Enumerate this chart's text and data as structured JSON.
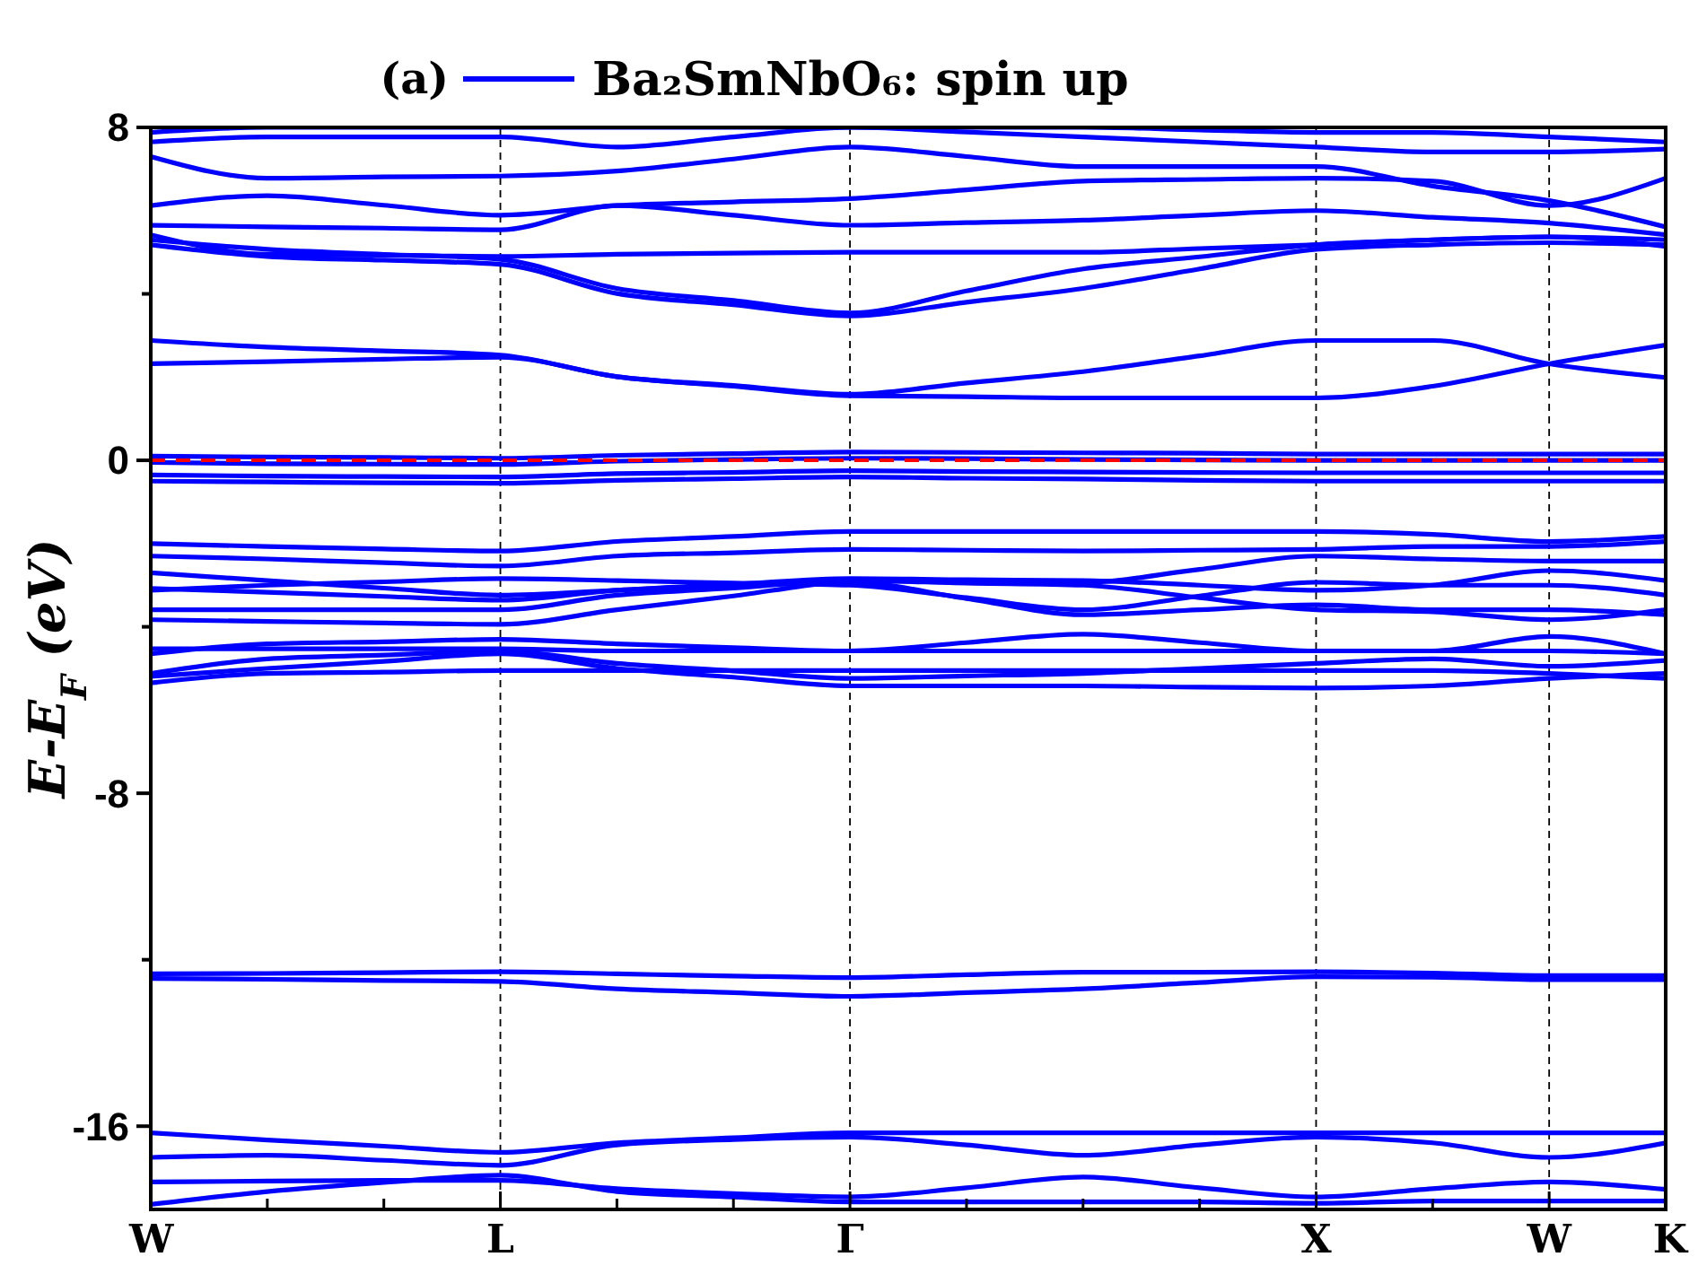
{
  "chart_data": {
    "type": "line",
    "title": "(a)",
    "ylabel": "E-E$_{F}$ (eV)",
    "categories": [
      "W",
      null,
      null,
      "L",
      null,
      null,
      "Γ",
      null,
      null,
      null,
      "X",
      null,
      "W",
      "K"
    ],
    "ylim": [
      -18,
      8
    ],
    "yticks": [
      8,
      {
        "value": 4,
        "label": null
      },
      0,
      {
        "value": -4,
        "label": null
      },
      -8,
      {
        "value": -12,
        "label": null
      },
      -16
    ],
    "grid": "x",
    "legend": "top",
    "marker": "none",
    "line_style": "solid",
    "ref_lines": [
      {
        "axis": "y",
        "value": 0,
        "color": "#ff0000",
        "line_style": "dashed"
      }
    ],
    "series": [
      {
        "name": "Ba₂SmNbO₆: spin up",
        "color": "#0000ff",
        "values": [
          2.32,
          2.37,
          2.43,
          2.48,
          2.01,
          1.78,
          1.55,
          1.53,
          1.5,
          1.5,
          1.5,
          1.78,
          2.32,
          2.77
        ]
      },
      {
        "color": "#0000ff",
        "values": [
          2.88,
          2.72,
          2.63,
          2.53,
          2.01,
          1.8,
          1.59,
          1.86,
          2.13,
          2.51,
          2.88,
          2.88,
          2.32,
          1.99
        ]
      },
      {
        "color": "#0000ff",
        "values": [
          5.3,
          5.07,
          4.95,
          4.83,
          4.13,
          3.84,
          3.54,
          4.07,
          4.6,
          4.89,
          5.18,
          5.3,
          5.37,
          5.3
        ]
      },
      {
        "color": "#0000ff",
        "values": [
          5.18,
          4.9,
          4.81,
          4.71,
          4.01,
          3.74,
          3.47,
          3.8,
          4.13,
          4.6,
          5.07,
          5.18,
          5.23,
          5.18
        ]
      },
      {
        "color": "#0000ff",
        "values": [
          5.42,
          4.95,
          4.93,
          4.9,
          4.95,
          4.98,
          5.0,
          5.0,
          5.0,
          5.09,
          5.18,
          5.3,
          5.37,
          5.14
        ]
      },
      {
        "color": "#0000ff",
        "values": [
          5.65,
          5.61,
          5.58,
          5.54,
          6.12,
          5.89,
          5.65,
          5.71,
          5.77,
          5.89,
          6.0,
          5.84,
          5.7,
          5.42
        ]
      },
      {
        "color": "#0000ff",
        "values": [
          6.12,
          6.36,
          6.13,
          5.89,
          6.12,
          6.21,
          6.29,
          6.5,
          6.71,
          6.75,
          6.78,
          6.71,
          6.12,
          6.78
        ]
      },
      {
        "color": "#0000ff",
        "values": [
          7.3,
          6.78,
          6.81,
          6.83,
          6.95,
          7.24,
          7.53,
          7.3,
          7.06,
          7.06,
          7.06,
          6.59,
          6.24,
          5.61
        ]
      },
      {
        "color": "#0000ff",
        "values": [
          7.65,
          7.77,
          7.77,
          7.77,
          7.53,
          7.77,
          8.0,
          7.89,
          7.77,
          7.65,
          7.53,
          7.41,
          7.41,
          7.48
        ]
      },
      {
        "color": "#0000ff",
        "values": [
          7.88,
          8.0,
          8.0,
          8.0,
          8.0,
          8.0,
          8.0,
          8.0,
          8.0,
          7.94,
          7.88,
          7.88,
          7.77,
          7.65
        ]
      },
      {
        "color": "#0000ff",
        "values": [
          0.1,
          0.08,
          0.07,
          0.05,
          0.12,
          0.16,
          0.2,
          0.19,
          0.18,
          0.17,
          0.15,
          0.15,
          0.15,
          0.15
        ]
      },
      {
        "color": "#0000ff",
        "values": [
          -0.05,
          -0.08,
          -0.09,
          -0.1,
          -0.02,
          0.02,
          0.05,
          0.04,
          0.02,
          0.01,
          0,
          0,
          0,
          0
        ]
      },
      {
        "color": "#0000ff",
        "values": [
          -0.35,
          -0.38,
          -0.39,
          -0.4,
          -0.32,
          -0.29,
          -0.25,
          -0.27,
          -0.28,
          -0.29,
          -0.3,
          -0.3,
          -0.3,
          -0.3
        ]
      },
      {
        "color": "#0000ff",
        "values": [
          -0.5,
          -0.52,
          -0.54,
          -0.55,
          -0.48,
          -0.44,
          -0.4,
          -0.43,
          -0.45,
          -0.48,
          -0.5,
          -0.5,
          -0.5,
          -0.5
        ]
      },
      {
        "color": "#0000ff",
        "values": [
          -2.0,
          -2.07,
          -2.13,
          -2.18,
          -1.95,
          -1.83,
          -1.71,
          -1.71,
          -1.71,
          -1.71,
          -1.71,
          -1.78,
          -1.95,
          -1.83
        ]
      },
      {
        "color": "#0000ff",
        "values": [
          -2.3,
          -2.37,
          -2.46,
          -2.54,
          -2.3,
          -2.22,
          -2.14,
          -2.16,
          -2.18,
          -2.16,
          -2.14,
          -2.07,
          -2.07,
          -1.95
        ]
      },
      {
        "color": "#0000ff",
        "values": [
          -2.7,
          -2.89,
          -3.07,
          -3.24,
          -3.12,
          -3.0,
          -2.89,
          -2.91,
          -2.93,
          -2.62,
          -2.3,
          -2.37,
          -2.42,
          -2.42
        ]
      },
      {
        "color": "#0000ff",
        "values": [
          -3.08,
          -3.17,
          -3.27,
          -3.36,
          -3.12,
          -2.98,
          -2.84,
          -2.87,
          -2.89,
          -3.0,
          -3.12,
          -3.0,
          -2.65,
          -2.89
        ]
      },
      {
        "color": "#0000ff",
        "values": [
          -3.12,
          -3.0,
          -2.92,
          -2.84,
          -2.89,
          -2.95,
          -3.0,
          -3.3,
          -3.59,
          -3.26,
          -2.93,
          -3.0,
          -3.0,
          -3.24
        ]
      },
      {
        "color": "#0000ff",
        "values": [
          -3.59,
          -3.59,
          -3.59,
          -3.59,
          -3.24,
          -3.07,
          -2.89,
          -2.95,
          -3.0,
          -3.3,
          -3.59,
          -3.64,
          -3.83,
          -3.59
        ]
      },
      {
        "color": "#0000ff",
        "values": [
          -3.83,
          -3.87,
          -3.91,
          -3.94,
          -3.59,
          -3.26,
          -2.93,
          -3.32,
          -3.71,
          -3.59,
          -3.47,
          -3.59,
          -3.59,
          -3.71
        ]
      },
      {
        "color": "#0000ff",
        "values": [
          -4.53,
          -4.53,
          -4.53,
          -4.53,
          -4.58,
          -4.58,
          -4.58,
          -4.38,
          -4.18,
          -4.38,
          -4.58,
          -4.58,
          -4.23,
          -4.65
        ]
      },
      {
        "color": "#0000ff",
        "values": [
          -4.65,
          -4.41,
          -4.36,
          -4.3,
          -4.41,
          -4.5,
          -4.58,
          -4.58,
          -4.58,
          -4.58,
          -4.58,
          -4.58,
          -4.58,
          -4.65
        ]
      },
      {
        "color": "#0000ff",
        "values": [
          -5.12,
          -4.77,
          -4.68,
          -4.58,
          -4.88,
          -5.06,
          -5.24,
          -5.18,
          -5.12,
          -5.0,
          -4.88,
          -4.77,
          -4.95,
          -4.81
        ]
      },
      {
        "color": "#0000ff",
        "values": [
          -5.35,
          -5.12,
          -5.09,
          -5.05,
          -5.05,
          -5.05,
          -5.05,
          -5.05,
          -5.05,
          -5.05,
          -5.05,
          -5.05,
          -5.12,
          -5.24
        ]
      },
      {
        "color": "#0000ff",
        "values": [
          -5.19,
          -5.0,
          -4.83,
          -4.65,
          -5.0,
          -5.21,
          -5.42,
          -5.42,
          -5.42,
          -5.45,
          -5.47,
          -5.42,
          -5.24,
          -5.12
        ]
      },
      {
        "color": "#0000ff",
        "values": [
          -12.34,
          -12.33,
          -12.31,
          -12.29,
          -12.34,
          -12.39,
          -12.43,
          -12.36,
          -12.3,
          -12.3,
          -12.29,
          -12.32,
          -12.38,
          -12.38
        ]
      },
      {
        "color": "#0000ff",
        "values": [
          -12.45,
          -12.47,
          -12.5,
          -12.52,
          -12.7,
          -12.79,
          -12.88,
          -12.79,
          -12.7,
          -12.55,
          -12.41,
          -12.42,
          -12.48,
          -12.48
        ]
      },
      {
        "color": "#0000ff",
        "values": [
          -16.16,
          -16.33,
          -16.48,
          -16.63,
          -16.4,
          -16.28,
          -16.16,
          -16.16,
          -16.16,
          -16.16,
          -16.16,
          -16.16,
          -16.16,
          -16.16
        ]
      },
      {
        "color": "#0000ff",
        "values": [
          -16.75,
          -16.7,
          -16.82,
          -16.94,
          -16.45,
          -16.32,
          -16.26,
          -16.45,
          -16.7,
          -16.45,
          -16.26,
          -16.4,
          -16.75,
          -16.4
        ]
      },
      {
        "color": "#0000ff",
        "values": [
          -17.34,
          -17.32,
          -17.3,
          -17.3,
          -17.5,
          -17.62,
          -17.7,
          -17.48,
          -17.22,
          -17.48,
          -17.7,
          -17.5,
          -17.34,
          -17.52
        ]
      },
      {
        "color": "#0000ff",
        "values": [
          -17.88,
          -17.57,
          -17.35,
          -17.18,
          -17.57,
          -17.7,
          -17.82,
          -17.82,
          -17.82,
          -17.82,
          -17.85,
          -17.8,
          -17.8,
          -17.8
        ]
      }
    ]
  }
}
